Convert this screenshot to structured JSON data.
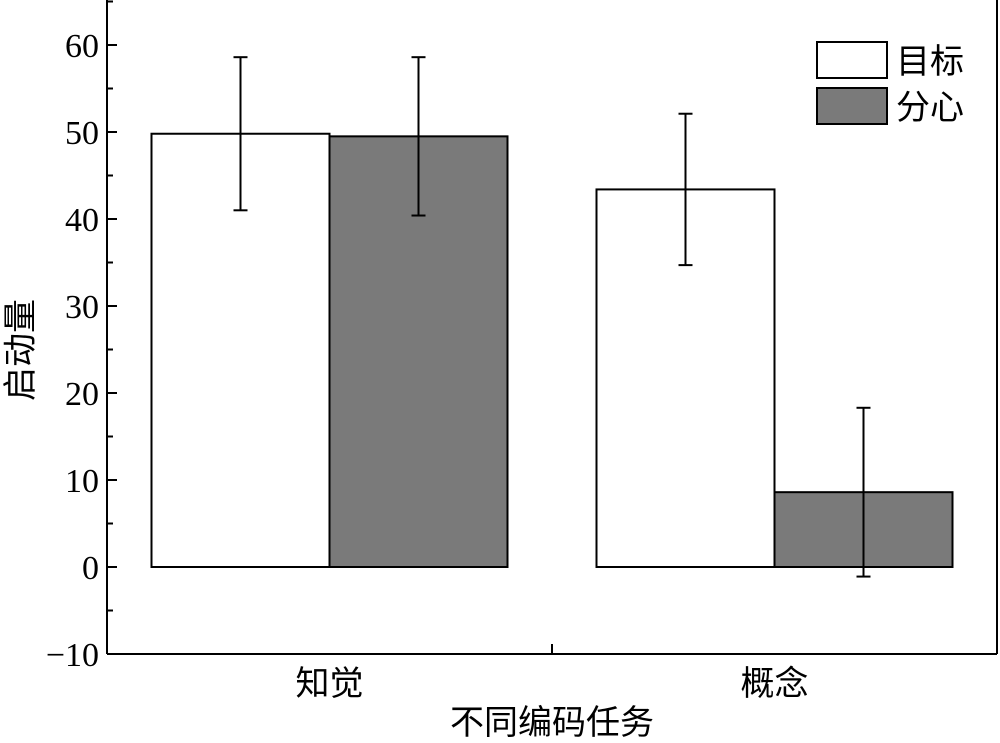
{
  "chart_data": {
    "type": "bar",
    "title": "",
    "xlabel": "不同编码任务",
    "ylabel": "启动量",
    "categories": [
      "知觉",
      "概念"
    ],
    "series": [
      {
        "name": "目标",
        "color": "#ffffff",
        "values": [
          49.8,
          43.4
        ],
        "error": [
          8.8,
          8.7
        ]
      },
      {
        "name": "分心",
        "color": "#7a7a7a",
        "values": [
          49.5,
          8.6
        ],
        "error": [
          9.1,
          9.7
        ]
      }
    ],
    "ylim": [
      -10,
      60
    ],
    "yticks": [
      "-10",
      "0",
      "10",
      "20",
      "30",
      "40",
      "50",
      "60"
    ],
    "legend_position": "top-right",
    "grid": false
  }
}
